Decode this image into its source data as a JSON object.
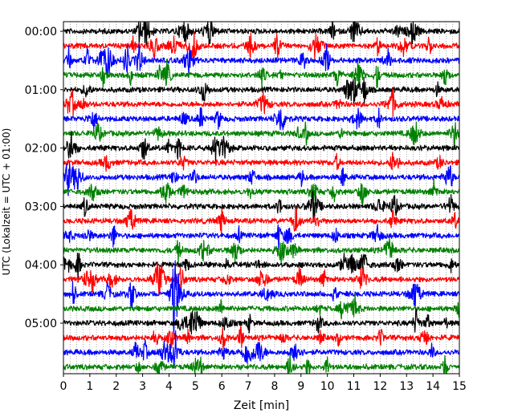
{
  "chart_data": {
    "type": "line",
    "subtype": "seismogram-helicorder",
    "xlabel": "Zeit  [min]",
    "ylabel": "UTC (Lokalzeit = UTC + 01:00)",
    "xlim": [
      0,
      15
    ],
    "x_ticks": [
      "0",
      "1",
      "2",
      "3",
      "4",
      "5",
      "6",
      "7",
      "8",
      "9",
      "10",
      "11",
      "12",
      "13",
      "14",
      "15"
    ],
    "y_ticks": [
      {
        "value": 0,
        "label": "00:00"
      },
      {
        "value": 60,
        "label": "01:00"
      },
      {
        "value": 120,
        "label": "02:00"
      },
      {
        "value": 180,
        "label": "03:00"
      },
      {
        "value": 240,
        "label": "04:00"
      },
      {
        "value": 300,
        "label": "05:00"
      }
    ],
    "trace_interval_minutes": 15,
    "trace_count": 24,
    "trace_colors": [
      "#000000",
      "#ff0000",
      "#0000ff",
      "#008000"
    ],
    "grid": {
      "x_minor_dotted": true
    }
  }
}
